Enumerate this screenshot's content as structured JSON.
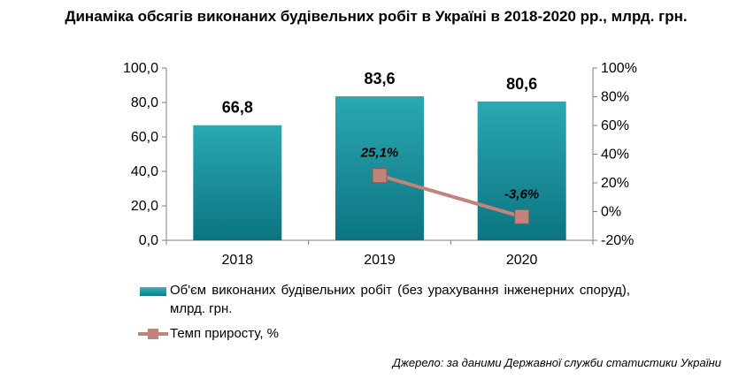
{
  "chart_data": {
    "type": "bar",
    "title": "Динаміка обсягів виконаних будівельних робіт в Україні в 2018-2020 рр., млрд. грн.",
    "categories": [
      "2018",
      "2019",
      "2020"
    ],
    "series": [
      {
        "name": "Об'єм виконаних будівельних робіт (без урахування інженерних споруд), млрд. грн.",
        "type": "bar",
        "axis": "left",
        "values": [
          66.8,
          83.6,
          80.6
        ],
        "labels": [
          "66,8",
          "83,6",
          "80,6"
        ],
        "color": "#1a98a4"
      },
      {
        "name": "Темп приросту, %",
        "type": "line",
        "axis": "right",
        "x": [
          "2019",
          "2020"
        ],
        "values": [
          25.1,
          -3.6
        ],
        "labels": [
          "25,1%",
          "-3,6%"
        ],
        "color": "#c1837a"
      }
    ],
    "y_left": {
      "lim": [
        0,
        100
      ],
      "ticks": [
        "0,0",
        "20,0",
        "40,0",
        "60,0",
        "80,0",
        "100,0"
      ]
    },
    "y_right": {
      "lim": [
        -20,
        100
      ],
      "ticks": [
        "-20%",
        "0%",
        "20%",
        "40%",
        "60%",
        "80%",
        "100%"
      ]
    },
    "grid": false,
    "legend": "bottom"
  },
  "source": "Джерело: за даними Державної служби статистики України"
}
